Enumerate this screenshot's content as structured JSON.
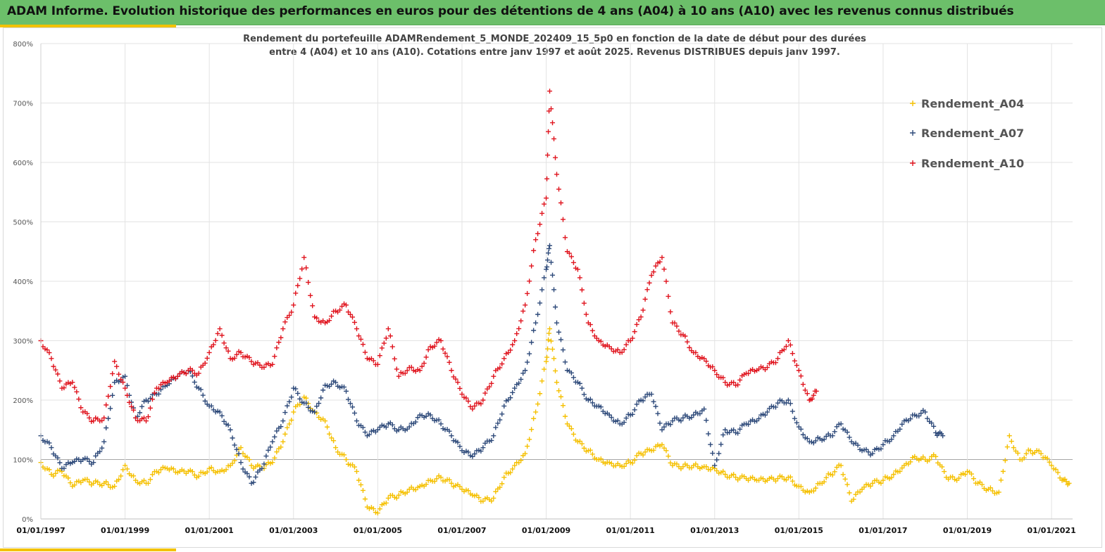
{
  "header": {
    "title": "ADAM Informe. Evolution historique des performances en euros pour des détentions de 4 ans (A04) à 10 ans (A10) avec les revenus connus distribués"
  },
  "chart_data": {
    "type": "scatter",
    "title_lines": [
      "Rendement du portefeuille ADAMRendement_5_MONDE_202409_15_5p0  en fonction de la date de début pour des durées",
      "entre 4 (A04) et 10 ans (A10). Cotations  entre janv 1997 et août 2025. Revenus DISTRIBUES depuis janv 1997."
    ],
    "xlabel": "",
    "ylabel": "",
    "x_range": [
      "1997-01-01",
      "2021-07-01"
    ],
    "ylim": [
      0,
      800
    ],
    "y_ticks": [
      "0%",
      "100%",
      "200%",
      "300%",
      "400%",
      "500%",
      "600%",
      "700%",
      "800%"
    ],
    "x_ticks": [
      "01/01/1997",
      "01/01/1999",
      "01/01/2001",
      "01/01/2003",
      "01/01/2005",
      "01/01/2007",
      "01/01/2009",
      "01/01/2011",
      "01/01/2013",
      "01/01/2015",
      "01/01/2017",
      "01/01/2019",
      "01/01/2021"
    ],
    "grid": true,
    "legend_position": "top-right",
    "marker": "+",
    "series": [
      {
        "name": "Rendement_A04",
        "color": "#f5c000",
        "points": [
          [
            "1997-01",
            95
          ],
          [
            "1997-04",
            75
          ],
          [
            "1997-07",
            80
          ],
          [
            "1997-10",
            55
          ],
          [
            "1998-01",
            65
          ],
          [
            "1998-04",
            60
          ],
          [
            "1998-07",
            60
          ],
          [
            "1998-10",
            55
          ],
          [
            "1999-01",
            90
          ],
          [
            "1999-04",
            65
          ],
          [
            "1999-07",
            60
          ],
          [
            "1999-10",
            80
          ],
          [
            "2000-01",
            85
          ],
          [
            "2000-04",
            78
          ],
          [
            "2000-07",
            80
          ],
          [
            "2000-10",
            72
          ],
          [
            "2001-01",
            85
          ],
          [
            "2001-04",
            80
          ],
          [
            "2001-07",
            90
          ],
          [
            "2001-10",
            120
          ],
          [
            "2002-01",
            90
          ],
          [
            "2002-04",
            85
          ],
          [
            "2002-07",
            95
          ],
          [
            "2002-10",
            130
          ],
          [
            "2003-01",
            180
          ],
          [
            "2003-04",
            205
          ],
          [
            "2003-07",
            180
          ],
          [
            "2003-10",
            165
          ],
          [
            "2004-01",
            120
          ],
          [
            "2004-04",
            100
          ],
          [
            "2004-07",
            80
          ],
          [
            "2004-10",
            20
          ],
          [
            "2005-01",
            10
          ],
          [
            "2005-04",
            35
          ],
          [
            "2005-07",
            40
          ],
          [
            "2005-10",
            50
          ],
          [
            "2006-01",
            55
          ],
          [
            "2006-04",
            65
          ],
          [
            "2006-07",
            70
          ],
          [
            "2006-10",
            60
          ],
          [
            "2007-01",
            50
          ],
          [
            "2007-04",
            40
          ],
          [
            "2007-07",
            30
          ],
          [
            "2007-10",
            35
          ],
          [
            "2008-01",
            70
          ],
          [
            "2008-04",
            90
          ],
          [
            "2008-07",
            110
          ],
          [
            "2008-10",
            180
          ],
          [
            "2009-01",
            265
          ],
          [
            "2009-02",
            320
          ],
          [
            "2009-04",
            230
          ],
          [
            "2009-07",
            160
          ],
          [
            "2009-10",
            130
          ],
          [
            "2010-01",
            115
          ],
          [
            "2010-04",
            100
          ],
          [
            "2010-07",
            95
          ],
          [
            "2010-10",
            90
          ],
          [
            "2011-01",
            95
          ],
          [
            "2011-04",
            110
          ],
          [
            "2011-07",
            115
          ],
          [
            "2011-10",
            125
          ],
          [
            "2012-01",
            90
          ],
          [
            "2012-04",
            88
          ],
          [
            "2012-07",
            90
          ],
          [
            "2012-10",
            88
          ],
          [
            "2013-01",
            85
          ],
          [
            "2013-04",
            75
          ],
          [
            "2013-07",
            70
          ],
          [
            "2013-10",
            68
          ],
          [
            "2014-01",
            65
          ],
          [
            "2014-04",
            65
          ],
          [
            "2014-07",
            68
          ],
          [
            "2014-10",
            70
          ],
          [
            "2015-01",
            55
          ],
          [
            "2015-04",
            45
          ],
          [
            "2015-07",
            60
          ],
          [
            "2015-10",
            75
          ],
          [
            "2016-01",
            90
          ],
          [
            "2016-04",
            30
          ],
          [
            "2016-07",
            50
          ],
          [
            "2016-10",
            60
          ],
          [
            "2017-01",
            65
          ],
          [
            "2017-04",
            75
          ],
          [
            "2017-07",
            90
          ],
          [
            "2017-10",
            105
          ],
          [
            "2018-01",
            100
          ],
          [
            "2018-04",
            105
          ],
          [
            "2018-07",
            70
          ],
          [
            "2018-10",
            65
          ],
          [
            "2019-01",
            80
          ],
          [
            "2019-04",
            60
          ],
          [
            "2019-07",
            50
          ],
          [
            "2019-10",
            45
          ],
          [
            "2020-01",
            140
          ],
          [
            "2020-04",
            100
          ],
          [
            "2020-07",
            115
          ],
          [
            "2020-10",
            110
          ],
          [
            "2021-01",
            90
          ],
          [
            "2021-04",
            65
          ],
          [
            "2021-06",
            60
          ]
        ]
      },
      {
        "name": "Rendement_A07",
        "color": "#2e4a7a",
        "points": [
          [
            "1997-01",
            140
          ],
          [
            "1997-04",
            120
          ],
          [
            "1997-07",
            85
          ],
          [
            "1997-10",
            95
          ],
          [
            "1998-01",
            100
          ],
          [
            "1998-04",
            95
          ],
          [
            "1998-07",
            130
          ],
          [
            "1998-10",
            230
          ],
          [
            "1999-01",
            240
          ],
          [
            "1999-04",
            170
          ],
          [
            "1999-07",
            200
          ],
          [
            "1999-10",
            210
          ],
          [
            "2000-01",
            225
          ],
          [
            "2000-04",
            240
          ],
          [
            "2000-07",
            250
          ],
          [
            "2000-10",
            220
          ],
          [
            "2001-01",
            190
          ],
          [
            "2001-04",
            180
          ],
          [
            "2001-07",
            150
          ],
          [
            "2001-10",
            95
          ],
          [
            "2002-01",
            60
          ],
          [
            "2002-04",
            85
          ],
          [
            "2002-07",
            130
          ],
          [
            "2002-10",
            165
          ],
          [
            "2003-01",
            220
          ],
          [
            "2003-04",
            195
          ],
          [
            "2003-07",
            180
          ],
          [
            "2003-10",
            225
          ],
          [
            "2004-01",
            230
          ],
          [
            "2004-04",
            215
          ],
          [
            "2004-07",
            165
          ],
          [
            "2004-10",
            140
          ],
          [
            "2005-01",
            150
          ],
          [
            "2005-04",
            160
          ],
          [
            "2005-07",
            150
          ],
          [
            "2005-10",
            155
          ],
          [
            "2006-01",
            175
          ],
          [
            "2006-04",
            175
          ],
          [
            "2006-07",
            160
          ],
          [
            "2006-10",
            140
          ],
          [
            "2007-01",
            115
          ],
          [
            "2007-04",
            105
          ],
          [
            "2007-07",
            120
          ],
          [
            "2007-10",
            140
          ],
          [
            "2008-01",
            190
          ],
          [
            "2008-04",
            220
          ],
          [
            "2008-07",
            250
          ],
          [
            "2008-10",
            330
          ],
          [
            "2009-01",
            420
          ],
          [
            "2009-02",
            460
          ],
          [
            "2009-04",
            330
          ],
          [
            "2009-07",
            250
          ],
          [
            "2009-10",
            230
          ],
          [
            "2010-01",
            200
          ],
          [
            "2010-04",
            190
          ],
          [
            "2010-07",
            175
          ],
          [
            "2010-10",
            160
          ],
          [
            "2011-01",
            175
          ],
          [
            "2011-04",
            200
          ],
          [
            "2011-07",
            210
          ],
          [
            "2011-10",
            150
          ],
          [
            "2012-01",
            165
          ],
          [
            "2012-04",
            170
          ],
          [
            "2012-07",
            175
          ],
          [
            "2012-10",
            185
          ],
          [
            "2013-01",
            90
          ],
          [
            "2013-04",
            150
          ],
          [
            "2013-07",
            145
          ],
          [
            "2013-10",
            160
          ],
          [
            "2014-01",
            165
          ],
          [
            "2014-04",
            180
          ],
          [
            "2014-07",
            195
          ],
          [
            "2014-10",
            200
          ],
          [
            "2015-01",
            155
          ],
          [
            "2015-04",
            130
          ],
          [
            "2015-07",
            135
          ],
          [
            "2015-10",
            140
          ],
          [
            "2016-01",
            160
          ],
          [
            "2016-04",
            130
          ],
          [
            "2016-07",
            115
          ],
          [
            "2016-10",
            110
          ],
          [
            "2017-01",
            125
          ],
          [
            "2017-04",
            140
          ],
          [
            "2017-07",
            165
          ],
          [
            "2017-10",
            175
          ],
          [
            "2018-01",
            180
          ],
          [
            "2018-04",
            145
          ],
          [
            "2018-06",
            140
          ]
        ]
      },
      {
        "name": "Rendement_A10",
        "color": "#e0141e",
        "points": [
          [
            "1997-01",
            300
          ],
          [
            "1997-04",
            270
          ],
          [
            "1997-07",
            220
          ],
          [
            "1997-10",
            230
          ],
          [
            "1998-01",
            180
          ],
          [
            "1998-04",
            165
          ],
          [
            "1998-07",
            170
          ],
          [
            "1998-10",
            265
          ],
          [
            "1999-01",
            220
          ],
          [
            "1999-04",
            170
          ],
          [
            "1999-07",
            165
          ],
          [
            "1999-10",
            220
          ],
          [
            "2000-01",
            230
          ],
          [
            "2000-04",
            240
          ],
          [
            "2000-07",
            250
          ],
          [
            "2000-10",
            245
          ],
          [
            "2001-01",
            280
          ],
          [
            "2001-04",
            320
          ],
          [
            "2001-07",
            270
          ],
          [
            "2001-10",
            280
          ],
          [
            "2002-01",
            265
          ],
          [
            "2002-04",
            255
          ],
          [
            "2002-07",
            260
          ],
          [
            "2002-10",
            320
          ],
          [
            "2003-01",
            360
          ],
          [
            "2003-04",
            440
          ],
          [
            "2003-07",
            340
          ],
          [
            "2003-10",
            330
          ],
          [
            "2004-01",
            350
          ],
          [
            "2004-04",
            360
          ],
          [
            "2004-07",
            320
          ],
          [
            "2004-10",
            270
          ],
          [
            "2005-01",
            260
          ],
          [
            "2005-04",
            320
          ],
          [
            "2005-07",
            240
          ],
          [
            "2005-10",
            255
          ],
          [
            "2006-01",
            250
          ],
          [
            "2006-04",
            290
          ],
          [
            "2006-07",
            300
          ],
          [
            "2006-10",
            250
          ],
          [
            "2007-01",
            210
          ],
          [
            "2007-04",
            185
          ],
          [
            "2007-07",
            200
          ],
          [
            "2007-10",
            240
          ],
          [
            "2008-01",
            270
          ],
          [
            "2008-04",
            300
          ],
          [
            "2008-07",
            360
          ],
          [
            "2008-10",
            470
          ],
          [
            "2009-01",
            540
          ],
          [
            "2009-02",
            720
          ],
          [
            "2009-04",
            580
          ],
          [
            "2009-07",
            450
          ],
          [
            "2009-10",
            420
          ],
          [
            "2010-01",
            330
          ],
          [
            "2010-04",
            300
          ],
          [
            "2010-07",
            290
          ],
          [
            "2010-10",
            280
          ],
          [
            "2011-01",
            300
          ],
          [
            "2011-04",
            340
          ],
          [
            "2011-07",
            410
          ],
          [
            "2011-10",
            440
          ],
          [
            "2012-01",
            330
          ],
          [
            "2012-04",
            310
          ],
          [
            "2012-07",
            280
          ],
          [
            "2012-10",
            270
          ],
          [
            "2013-01",
            250
          ],
          [
            "2013-04",
            230
          ],
          [
            "2013-07",
            225
          ],
          [
            "2013-10",
            245
          ],
          [
            "2014-01",
            250
          ],
          [
            "2014-04",
            255
          ],
          [
            "2014-07",
            270
          ],
          [
            "2014-10",
            300
          ],
          [
            "2015-01",
            250
          ],
          [
            "2015-04",
            200
          ],
          [
            "2015-06",
            215
          ]
        ]
      }
    ]
  }
}
